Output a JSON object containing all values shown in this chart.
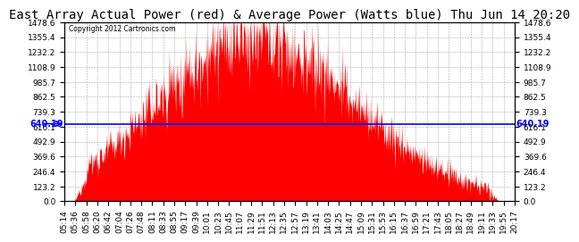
{
  "title": "East Array Actual Power (red) & Average Power (Watts blue) Thu Jun 14 20:20",
  "copyright": "Copyright 2012 Cartronics.com",
  "avg_power": 640.19,
  "ymax": 1478.6,
  "ymin": 0.0,
  "yticks": [
    0.0,
    123.2,
    246.4,
    369.6,
    492.9,
    616.1,
    739.3,
    862.5,
    985.7,
    1108.9,
    1232.2,
    1355.4,
    1478.6
  ],
  "xtick_labels": [
    "05:14",
    "05:36",
    "05:58",
    "06:20",
    "06:42",
    "07:04",
    "07:26",
    "07:48",
    "08:11",
    "08:33",
    "08:55",
    "09:17",
    "09:39",
    "10:01",
    "10:23",
    "10:45",
    "11:07",
    "11:29",
    "11:51",
    "12:13",
    "12:35",
    "12:57",
    "13:19",
    "13:41",
    "14:03",
    "14:25",
    "14:47",
    "15:09",
    "15:31",
    "15:53",
    "16:15",
    "16:37",
    "16:59",
    "17:21",
    "17:43",
    "18:05",
    "18:27",
    "18:49",
    "19:11",
    "19:33",
    "19:55",
    "20:17"
  ],
  "bar_color": "#FF0000",
  "line_color": "#0000FF",
  "bg_color": "#FFFFFF",
  "grid_color": "#AAAAAA",
  "title_fontsize": 10,
  "label_fontsize": 6.5,
  "avg_label_fontsize": 7
}
